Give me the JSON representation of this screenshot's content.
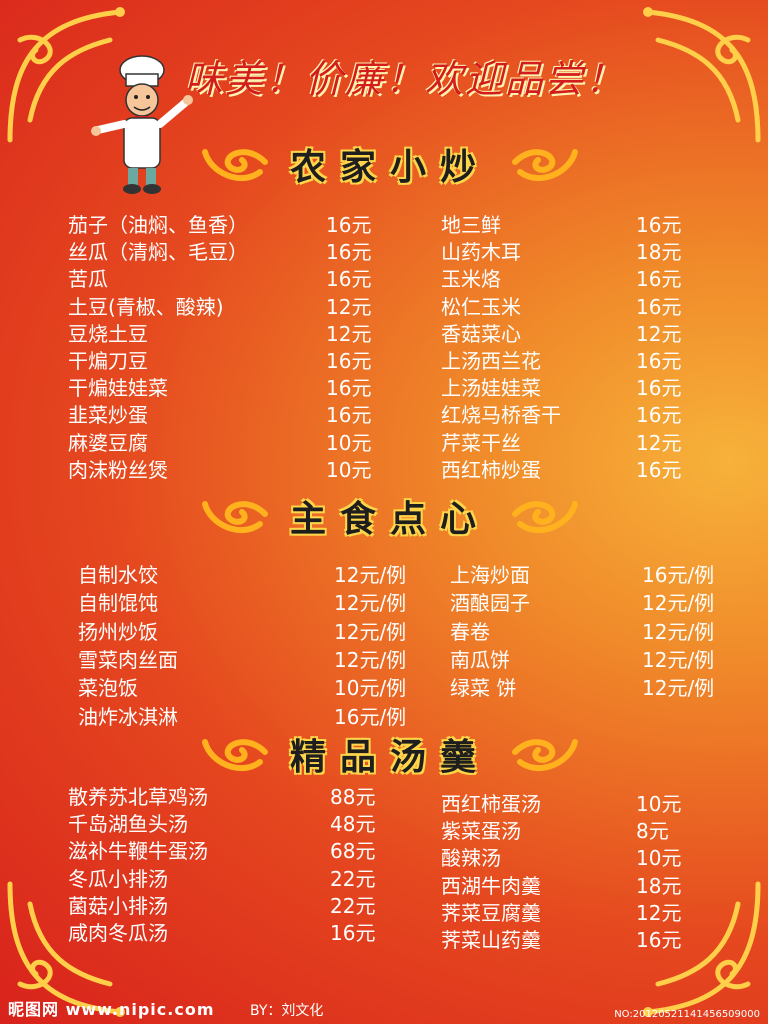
{
  "slogan": "味美！价廉！欢迎品尝！",
  "sections": {
    "stirfry": {
      "title": "农家小炒",
      "left": [
        {
          "name": "茄子（油焖、鱼香）",
          "price": "16元"
        },
        {
          "name": "丝瓜（清焖、毛豆）",
          "price": "16元"
        },
        {
          "name": "苦瓜",
          "price": "16元"
        },
        {
          "name": "土豆(青椒、酸辣)",
          "price": "12元"
        },
        {
          "name": "豆烧土豆",
          "price": "12元"
        },
        {
          "name": "干煸刀豆",
          "price": "16元"
        },
        {
          "name": "干煸娃娃菜",
          "price": "16元"
        },
        {
          "name": "韭菜炒蛋",
          "price": "16元"
        },
        {
          "name": "麻婆豆腐",
          "price": "10元"
        },
        {
          "name": "肉沫粉丝煲",
          "price": "10元"
        }
      ],
      "right": [
        {
          "name": "地三鲜",
          "price": "16元"
        },
        {
          "name": "山药木耳",
          "price": "18元"
        },
        {
          "name": "玉米烙",
          "price": "16元"
        },
        {
          "name": "松仁玉米",
          "price": "16元"
        },
        {
          "name": "香菇菜心",
          "price": "12元"
        },
        {
          "name": "上汤西兰花",
          "price": "16元"
        },
        {
          "name": "上汤娃娃菜",
          "price": "16元"
        },
        {
          "name": "红烧马桥香干",
          "price": "16元"
        },
        {
          "name": "芹菜干丝",
          "price": "12元"
        },
        {
          "name": "西红柿炒蛋",
          "price": "16元"
        }
      ]
    },
    "staple": {
      "title": "主食点心",
      "left": [
        {
          "name": "自制水饺",
          "price": "12元/例"
        },
        {
          "name": "自制馄饨",
          "price": "12元/例"
        },
        {
          "name": "扬州炒饭",
          "price": "12元/例"
        },
        {
          "name": "雪菜肉丝面",
          "price": "12元/例"
        },
        {
          "name": "菜泡饭",
          "price": "10元/例"
        },
        {
          "name": "油炸冰淇淋",
          "price": "16元/例"
        }
      ],
      "right": [
        {
          "name": "上海炒面",
          "price": "16元/例"
        },
        {
          "name": "酒酿园子",
          "price": "12元/例"
        },
        {
          "name": "春卷",
          "price": "12元/例"
        },
        {
          "name": "南瓜饼",
          "price": "12元/例"
        },
        {
          "name": "绿菜 饼",
          "price": "12元/例"
        }
      ]
    },
    "soup": {
      "title": "精品汤羹",
      "left": [
        {
          "name": "散养苏北草鸡汤",
          "price": "88元"
        },
        {
          "name": "千岛湖鱼头汤",
          "price": "48元"
        },
        {
          "name": "滋补牛鞭牛蛋汤",
          "price": "68元"
        },
        {
          "name": "冬瓜小排汤",
          "price": "22元"
        },
        {
          "name": "菌菇小排汤",
          "price": "22元"
        },
        {
          "name": "咸肉冬瓜汤",
          "price": "16元"
        }
      ],
      "right": [
        {
          "name": "西红柿蛋汤",
          "price": "10元"
        },
        {
          "name": "紫菜蛋汤",
          "price": "8元"
        },
        {
          "name": "酸辣汤",
          "price": "10元"
        },
        {
          "name": "西湖牛肉羹",
          "price": "18元"
        },
        {
          "name": "荠菜豆腐羹",
          "price": "12元"
        },
        {
          "name": "荠菜山药羹",
          "price": "16元"
        }
      ]
    }
  },
  "footer": {
    "site": "昵图网 www.nipic.com",
    "by": "BY：刘文化",
    "no": "NO:20120521141456509000"
  },
  "colors": {
    "background": "#e5481f",
    "ornament": "#ffcf4a",
    "text": "#ffffff"
  }
}
